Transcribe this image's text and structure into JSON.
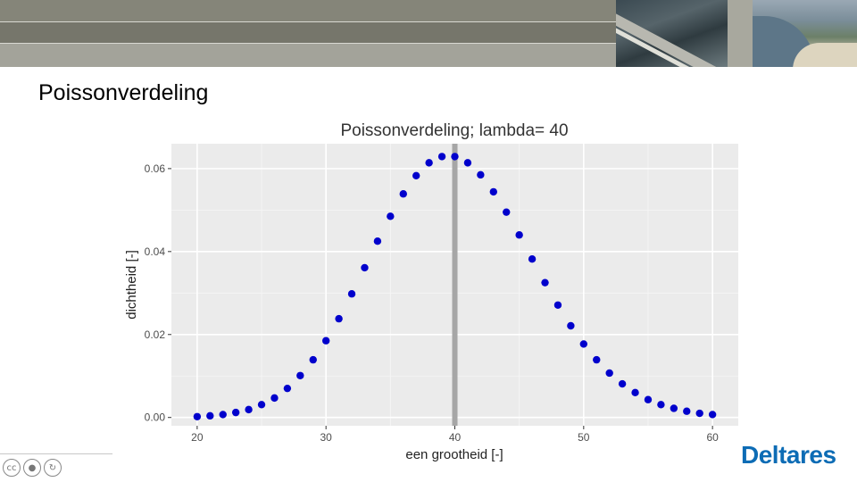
{
  "slide": {
    "title": "Poissonverdeling"
  },
  "branding": {
    "name": "Deltares",
    "accent_color": "#0d6cb5",
    "license_icons": [
      "cc-icon",
      "by-icon",
      "sa-icon"
    ]
  },
  "chart_data": {
    "type": "scatter",
    "title": "Poissonverdeling; lambda= 40",
    "xlabel": "een grootheid [-]",
    "ylabel": "dichtheid [-]",
    "xlim": [
      18,
      62
    ],
    "ylim": [
      -0.002,
      0.066
    ],
    "xticks": [
      20,
      30,
      40,
      50,
      60
    ],
    "xtick_labels": [
      "20",
      "30",
      "40",
      "50",
      "60"
    ],
    "yticks": [
      0.0,
      0.02,
      0.04,
      0.06
    ],
    "ytick_labels": [
      "0.00",
      "0.02",
      "0.04",
      "0.06"
    ],
    "grid": true,
    "background": "#ebebeb",
    "point_color": "#0000cc",
    "vline": {
      "x": 40,
      "color": "#a6a6a6"
    },
    "series": [
      {
        "x": [
          20,
          21,
          22,
          23,
          24,
          25,
          26,
          27,
          28,
          29,
          30,
          31,
          32,
          33,
          34,
          35,
          36,
          37,
          38,
          39,
          40,
          41,
          42,
          43,
          44,
          45,
          46,
          47,
          48,
          49,
          50,
          51,
          52,
          53,
          54,
          55,
          56,
          57,
          58,
          59,
          60
        ],
        "values": [
          0.0002,
          0.0004,
          0.0007,
          0.0012,
          0.0019,
          0.0031,
          0.0047,
          0.007,
          0.0101,
          0.0139,
          0.0185,
          0.0238,
          0.0298,
          0.0361,
          0.0425,
          0.0485,
          0.0539,
          0.0583,
          0.0614,
          0.0629,
          0.0629,
          0.0614,
          0.0585,
          0.0544,
          0.0495,
          0.044,
          0.0382,
          0.0325,
          0.0271,
          0.0221,
          0.0177,
          0.0139,
          0.0107,
          0.0081,
          0.006,
          0.0043,
          0.0031,
          0.0022,
          0.0015,
          0.001,
          0.0007
        ]
      }
    ]
  }
}
